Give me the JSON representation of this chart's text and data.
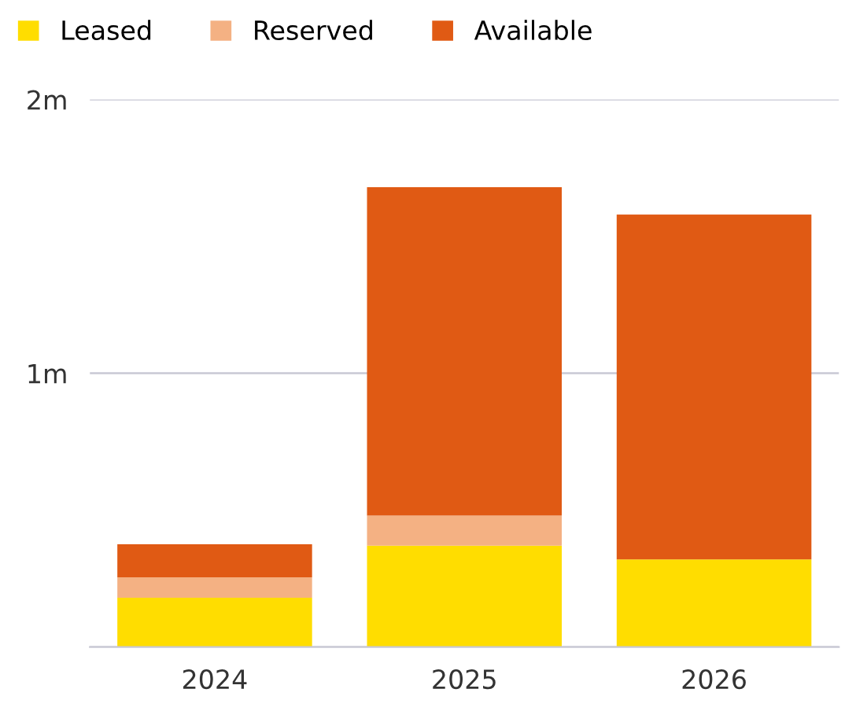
{
  "chart_data": {
    "type": "bar",
    "stacked": true,
    "categories": [
      "2024",
      "2025",
      "2026"
    ],
    "series": [
      {
        "name": "Leased",
        "color": "#ffdd00",
        "values": [
          0.18,
          0.37,
          0.32
        ]
      },
      {
        "name": "Reserved",
        "color": "#f4b183",
        "values": [
          0.075,
          0.11,
          0
        ]
      },
      {
        "name": "Available",
        "color": "#e05a14",
        "values": [
          0.12,
          1.2,
          1.26
        ]
      }
    ],
    "ylim": [
      0,
      2
    ],
    "yticks": [
      {
        "value": 0,
        "label": null
      },
      {
        "value": 1,
        "label": "1m"
      },
      {
        "value": 2,
        "label": "2m"
      }
    ],
    "grid": "y",
    "legend": "top left"
  }
}
